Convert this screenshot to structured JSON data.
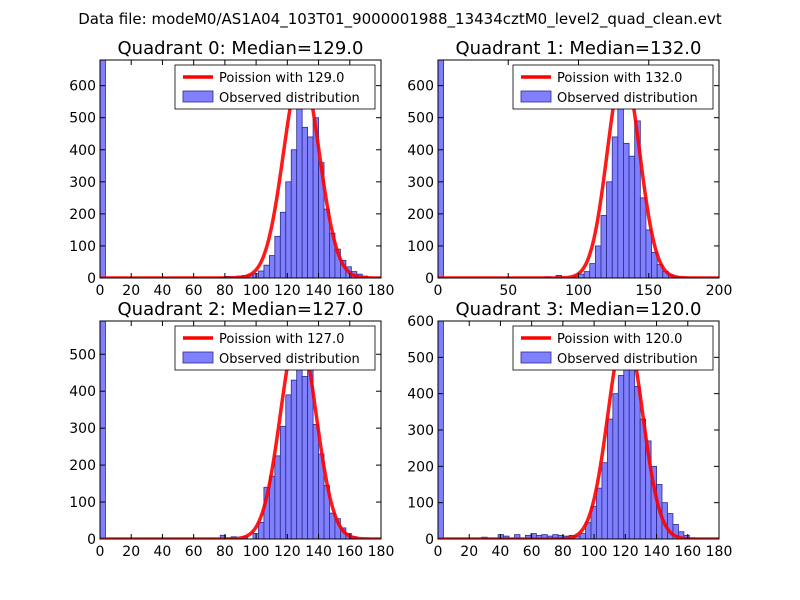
{
  "figure": {
    "suptitle": "Data file: modeM0/AS1A04_103T01_9000001988_13434cztM0_level2_quad_clean.evt"
  },
  "colors": {
    "bar_fill": "#8080ff",
    "bar_edge": "#2a2a8a",
    "fit_line": "#ff0000",
    "axes": "#000000"
  },
  "chart_data": [
    {
      "type": "bar",
      "title": "Quadrant 0: Median=129.0",
      "xlim": [
        0,
        180
      ],
      "ylim": [
        0,
        680
      ],
      "xticks": [
        0,
        20,
        40,
        60,
        80,
        100,
        120,
        140,
        160,
        180
      ],
      "yticks": [
        0,
        100,
        200,
        300,
        400,
        500,
        600
      ],
      "legend": [
        "Poission with 129.0",
        "Observed distribution"
      ],
      "median": 129.0,
      "fit_peak": 648,
      "fit_sigma": 11.4,
      "bin_width": 3.5,
      "bins": [
        {
          "x": 0,
          "y": 680
        },
        {
          "x": 77,
          "y": 3
        },
        {
          "x": 80.5,
          "y": 5
        },
        {
          "x": 84,
          "y": 4
        },
        {
          "x": 87.5,
          "y": 6
        },
        {
          "x": 91,
          "y": 8
        },
        {
          "x": 94.5,
          "y": 10
        },
        {
          "x": 98,
          "y": 14
        },
        {
          "x": 101.5,
          "y": 22
        },
        {
          "x": 105,
          "y": 40
        },
        {
          "x": 108.5,
          "y": 70
        },
        {
          "x": 112,
          "y": 130
        },
        {
          "x": 115.5,
          "y": 205
        },
        {
          "x": 119,
          "y": 300
        },
        {
          "x": 122.5,
          "y": 400
        },
        {
          "x": 126,
          "y": 580
        },
        {
          "x": 129.5,
          "y": 470
        },
        {
          "x": 133,
          "y": 440
        },
        {
          "x": 136.5,
          "y": 500
        },
        {
          "x": 140,
          "y": 360
        },
        {
          "x": 143.5,
          "y": 215
        },
        {
          "x": 147,
          "y": 140
        },
        {
          "x": 150.5,
          "y": 90
        },
        {
          "x": 154,
          "y": 55
        },
        {
          "x": 157.5,
          "y": 35
        },
        {
          "x": 161,
          "y": 20
        },
        {
          "x": 164.5,
          "y": 12
        },
        {
          "x": 168,
          "y": 6
        }
      ]
    },
    {
      "type": "bar",
      "title": "Quadrant 1: Median=132.0",
      "xlim": [
        0,
        200
      ],
      "ylim": [
        0,
        680
      ],
      "xticks": [
        0,
        50,
        100,
        150,
        200
      ],
      "yticks": [
        0,
        100,
        200,
        300,
        400,
        500,
        600
      ],
      "legend": [
        "Poission with 132.0",
        "Observed distribution"
      ],
      "median": 132.0,
      "fit_peak": 650,
      "fit_sigma": 11.5,
      "bin_width": 4,
      "bins": [
        {
          "x": 0,
          "y": 680
        },
        {
          "x": 76,
          "y": 4
        },
        {
          "x": 84,
          "y": 8
        },
        {
          "x": 96,
          "y": 5
        },
        {
          "x": 100,
          "y": 12
        },
        {
          "x": 104,
          "y": 20
        },
        {
          "x": 108,
          "y": 45
        },
        {
          "x": 112,
          "y": 100
        },
        {
          "x": 116,
          "y": 195
        },
        {
          "x": 120,
          "y": 300
        },
        {
          "x": 124,
          "y": 440
        },
        {
          "x": 128,
          "y": 600
        },
        {
          "x": 132,
          "y": 420
        },
        {
          "x": 136,
          "y": 380
        },
        {
          "x": 140,
          "y": 490
        },
        {
          "x": 144,
          "y": 250
        },
        {
          "x": 148,
          "y": 150
        },
        {
          "x": 152,
          "y": 80
        },
        {
          "x": 156,
          "y": 42
        },
        {
          "x": 160,
          "y": 20
        },
        {
          "x": 164,
          "y": 10
        },
        {
          "x": 168,
          "y": 5
        },
        {
          "x": 172,
          "y": 3
        }
      ]
    },
    {
      "type": "bar",
      "title": "Quadrant 2: Median=127.0",
      "xlim": [
        0,
        180
      ],
      "ylim": [
        0,
        590
      ],
      "xticks": [
        0,
        20,
        40,
        60,
        80,
        100,
        120,
        140,
        160,
        180
      ],
      "yticks": [
        0,
        100,
        200,
        300,
        400,
        500
      ],
      "legend": [
        "Poission with 127.0",
        "Observed distribution"
      ],
      "median": 127.0,
      "fit_peak": 565,
      "fit_sigma": 11.3,
      "bin_width": 3.5,
      "bins": [
        {
          "x": 0,
          "y": 590
        },
        {
          "x": 77,
          "y": 10
        },
        {
          "x": 84,
          "y": 6
        },
        {
          "x": 91,
          "y": 7
        },
        {
          "x": 98,
          "y": 15
        },
        {
          "x": 101.5,
          "y": 45
        },
        {
          "x": 105,
          "y": 140
        },
        {
          "x": 108.5,
          "y": 170
        },
        {
          "x": 112,
          "y": 225
        },
        {
          "x": 115.5,
          "y": 305
        },
        {
          "x": 119,
          "y": 390
        },
        {
          "x": 122.5,
          "y": 430
        },
        {
          "x": 126,
          "y": 535
        },
        {
          "x": 129.5,
          "y": 440
        },
        {
          "x": 133,
          "y": 505
        },
        {
          "x": 136.5,
          "y": 310
        },
        {
          "x": 140,
          "y": 230
        },
        {
          "x": 143.5,
          "y": 145
        },
        {
          "x": 147,
          "y": 70
        },
        {
          "x": 150.5,
          "y": 55
        },
        {
          "x": 154,
          "y": 30
        },
        {
          "x": 157.5,
          "y": 15
        },
        {
          "x": 161,
          "y": 6
        }
      ]
    },
    {
      "type": "bar",
      "title": "Quadrant 3: Median=120.0",
      "xlim": [
        0,
        180
      ],
      "ylim": [
        0,
        600
      ],
      "xticks": [
        0,
        20,
        40,
        60,
        80,
        100,
        120,
        140,
        160,
        180
      ],
      "yticks": [
        0,
        100,
        200,
        300,
        400,
        500,
        600
      ],
      "legend": [
        "Poission with 120.0",
        "Observed distribution"
      ],
      "median": 120.0,
      "fit_peak": 575,
      "fit_sigma": 11.0,
      "bin_width": 3.5,
      "bins": [
        {
          "x": 0,
          "y": 600
        },
        {
          "x": 28,
          "y": 5
        },
        {
          "x": 38.5,
          "y": 12
        },
        {
          "x": 42,
          "y": 8
        },
        {
          "x": 49,
          "y": 12
        },
        {
          "x": 56,
          "y": 10
        },
        {
          "x": 59.5,
          "y": 15
        },
        {
          "x": 63,
          "y": 10
        },
        {
          "x": 66.5,
          "y": 12
        },
        {
          "x": 70,
          "y": 8
        },
        {
          "x": 73.5,
          "y": 12
        },
        {
          "x": 77,
          "y": 10
        },
        {
          "x": 80.5,
          "y": 8
        },
        {
          "x": 84,
          "y": 10
        },
        {
          "x": 87.5,
          "y": 8
        },
        {
          "x": 91,
          "y": 15
        },
        {
          "x": 94.5,
          "y": 45
        },
        {
          "x": 98,
          "y": 90
        },
        {
          "x": 101.5,
          "y": 140
        },
        {
          "x": 105,
          "y": 210
        },
        {
          "x": 108.5,
          "y": 330
        },
        {
          "x": 112,
          "y": 400
        },
        {
          "x": 115.5,
          "y": 450
        },
        {
          "x": 119,
          "y": 530
        },
        {
          "x": 122.5,
          "y": 480
        },
        {
          "x": 126,
          "y": 420
        },
        {
          "x": 129.5,
          "y": 330
        },
        {
          "x": 133,
          "y": 270
        },
        {
          "x": 136.5,
          "y": 200
        },
        {
          "x": 140,
          "y": 150
        },
        {
          "x": 143.5,
          "y": 100
        },
        {
          "x": 147,
          "y": 70
        },
        {
          "x": 150.5,
          "y": 40
        },
        {
          "x": 154,
          "y": 20
        },
        {
          "x": 157.5,
          "y": 10
        }
      ]
    }
  ]
}
